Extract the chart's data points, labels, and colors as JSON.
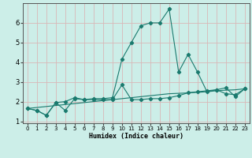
{
  "xlabel": "Humidex (Indice chaleur)",
  "bg_color": "#cceee8",
  "grid_color": "#d8b8b8",
  "line_color": "#1a7a6e",
  "xlim_min": -0.5,
  "xlim_max": 23.5,
  "ylim_min": 0.9,
  "ylim_max": 7.0,
  "yticks": [
    1,
    2,
    3,
    4,
    5,
    6
  ],
  "xticks": [
    0,
    1,
    2,
    3,
    4,
    5,
    6,
    7,
    8,
    9,
    10,
    11,
    12,
    13,
    14,
    15,
    16,
    17,
    18,
    19,
    20,
    21,
    22,
    23
  ],
  "line1_x": [
    0,
    1,
    2,
    3,
    4,
    5,
    6,
    7,
    8,
    9,
    10,
    11,
    12,
    13,
    14,
    15,
    16,
    17,
    18,
    19,
    20,
    21,
    22,
    23
  ],
  "line1_y": [
    1.65,
    1.55,
    1.3,
    1.95,
    1.55,
    2.15,
    2.1,
    2.1,
    2.1,
    2.1,
    2.85,
    2.1,
    2.1,
    2.15,
    2.15,
    2.2,
    2.3,
    2.45,
    2.5,
    2.55,
    2.6,
    2.4,
    2.35,
    2.65
  ],
  "line2_x": [
    0,
    1,
    2,
    3,
    4,
    5,
    6,
    7,
    8,
    9,
    10,
    11,
    12,
    13,
    14,
    15,
    16,
    17,
    18,
    19,
    20,
    21,
    22,
    23
  ],
  "line2_y": [
    1.65,
    1.55,
    1.3,
    1.95,
    2.0,
    2.2,
    2.1,
    2.15,
    2.15,
    2.2,
    4.15,
    5.0,
    5.85,
    6.0,
    6.0,
    6.7,
    3.5,
    4.4,
    3.5,
    2.5,
    2.6,
    2.7,
    2.25,
    2.65
  ],
  "line3_x": [
    0,
    1,
    2,
    3,
    4,
    5,
    6,
    7,
    8,
    9,
    10,
    11,
    12,
    13,
    14,
    15,
    16,
    17,
    18,
    19,
    20,
    21,
    22,
    23
  ],
  "line3_y": [
    1.65,
    1.7,
    1.75,
    1.8,
    1.85,
    1.9,
    1.95,
    2.0,
    2.05,
    2.1,
    2.15,
    2.2,
    2.25,
    2.3,
    2.35,
    2.4,
    2.42,
    2.44,
    2.47,
    2.5,
    2.55,
    2.58,
    2.6,
    2.65
  ]
}
